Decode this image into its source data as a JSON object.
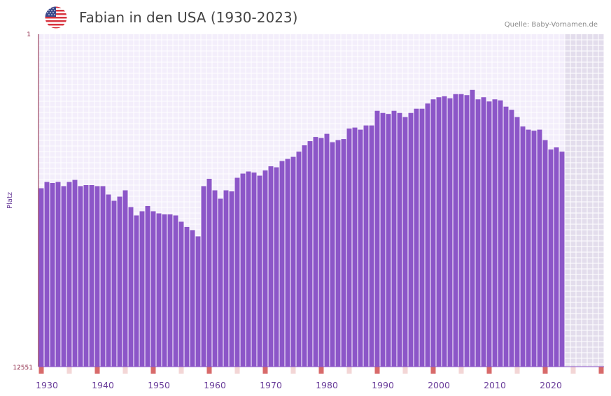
{
  "header": {
    "title": "Fabian in den USA (1930-2023)",
    "source": "Quelle: Baby-Vornamen.de",
    "flag_icon": "usa-flag-icon"
  },
  "colors": {
    "bar": "#8c56c8",
    "plot_bg": "#f3eefb",
    "grid": "#ffffff",
    "future_bg": "#e3ddec",
    "axis": "#8a2040",
    "year_label": "#6a3d9a",
    "tick_marker_strong": "#d86a6a",
    "tick_marker_light": "#f3d6d6"
  },
  "chart_data": {
    "type": "bar",
    "title": "Fabian in den USA (1930-2023)",
    "xlabel": "",
    "ylabel": "Platz",
    "y_axis_inverted": true,
    "ylim": [
      1,
      12551
    ],
    "ytick_labels": [
      "1",
      "12551"
    ],
    "x_range": [
      1929,
      2029
    ],
    "xtick_labels": [
      "1930",
      "1940",
      "1950",
      "1960",
      "1970",
      "1980",
      "1990",
      "2000",
      "2010",
      "2020"
    ],
    "future_shading_from_year": 2023,
    "tick_marker_years_strong": [
      1929,
      1939,
      1949,
      1959,
      1969,
      1979,
      1989,
      1999,
      2009,
      2019,
      2029
    ],
    "years": [
      1929,
      1930,
      1931,
      1932,
      1933,
      1934,
      1935,
      1936,
      1937,
      1938,
      1939,
      1940,
      1941,
      1942,
      1943,
      1944,
      1945,
      1946,
      1947,
      1948,
      1949,
      1950,
      1951,
      1952,
      1953,
      1954,
      1955,
      1956,
      1957,
      1958,
      1959,
      1960,
      1961,
      1962,
      1963,
      1964,
      1965,
      1966,
      1967,
      1968,
      1969,
      1970,
      1971,
      1972,
      1973,
      1974,
      1975,
      1976,
      1977,
      1978,
      1979,
      1980,
      1981,
      1982,
      1983,
      1984,
      1985,
      1986,
      1987,
      1988,
      1989,
      1990,
      1991,
      1992,
      1993,
      1994,
      1995,
      1996,
      1997,
      1998,
      1999,
      2000,
      2001,
      2002,
      2003,
      2004,
      2005,
      2006,
      2007,
      2008,
      2009,
      2010,
      2011,
      2012,
      2013,
      2014,
      2015,
      2016,
      2017,
      2018,
      2019,
      2020,
      2021,
      2022
    ],
    "ranks": [
      5815,
      5578,
      5617,
      5578,
      5736,
      5578,
      5499,
      5736,
      5696,
      5696,
      5736,
      5736,
      6052,
      6289,
      6131,
      5894,
      6527,
      6842,
      6684,
      6486,
      6684,
      6763,
      6802,
      6802,
      6842,
      7079,
      7276,
      7395,
      7632,
      5736,
      5459,
      5894,
      6210,
      5894,
      5933,
      5420,
      5262,
      5183,
      5222,
      5341,
      5144,
      4986,
      5025,
      4788,
      4709,
      4630,
      4432,
      4195,
      4037,
      3879,
      3919,
      3761,
      4077,
      3998,
      3958,
      3563,
      3524,
      3602,
      3445,
      3445,
      2893,
      2972,
      3011,
      2893,
      2972,
      3129,
      2972,
      2814,
      2814,
      2617,
      2459,
      2380,
      2341,
      2419,
      2262,
      2262,
      2301,
      2104,
      2459,
      2380,
      2538,
      2459,
      2498,
      2735,
      2853,
      3129,
      3484,
      3602,
      3642,
      3602,
      3998,
      4353,
      4274,
      4432
    ]
  }
}
